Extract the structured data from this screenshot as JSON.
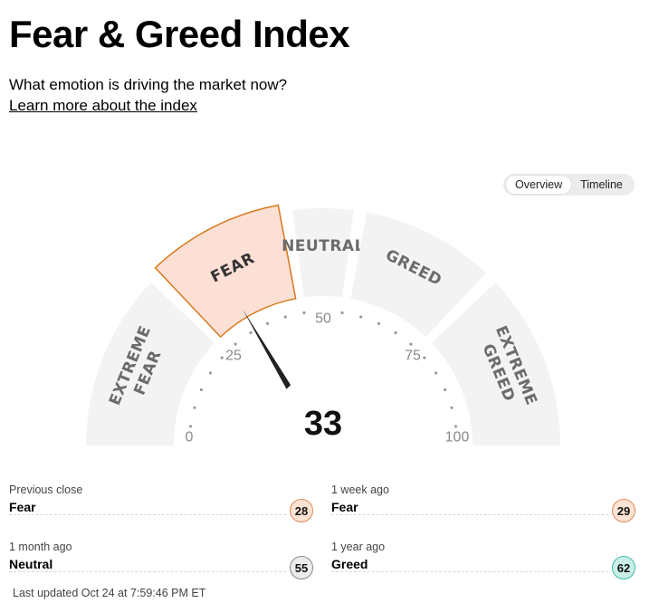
{
  "header": {
    "title": "Fear & Greed Index",
    "subtitle": "What emotion is driving the market now?",
    "learn_link": "Learn more about the index"
  },
  "view_toggle": {
    "options": [
      "Overview",
      "Timeline"
    ],
    "selected": "Overview"
  },
  "gauge": {
    "score": "33",
    "score_value": 33,
    "range": [
      0,
      100
    ],
    "active_segment": "FEAR",
    "segments": [
      {
        "label_lines": [
          "EXTREME",
          "FEAR"
        ],
        "range": [
          0,
          25
        ]
      },
      {
        "label_lines": [
          "FEAR"
        ],
        "range": [
          25,
          45
        ]
      },
      {
        "label_lines": [
          "NEUTRAL"
        ],
        "range": [
          45,
          55
        ]
      },
      {
        "label_lines": [
          "GREED"
        ],
        "range": [
          55,
          75
        ]
      },
      {
        "label_lines": [
          "EXTREME",
          "GREED"
        ],
        "range": [
          75,
          100
        ]
      }
    ],
    "tick_labels": [
      "0",
      "25",
      "50",
      "75",
      "100"
    ],
    "colors": {
      "segment": "#f3f3f3",
      "active_fill": "#fde0d5",
      "active_stroke": "#d9781a",
      "segment_text": "#6b6b6b",
      "active_text": "#333333",
      "needle": "#222222"
    }
  },
  "stats": [
    {
      "label": "Previous close",
      "value": "Fear",
      "score": "28",
      "fill": "#fde3d4",
      "border": "#e08a5a"
    },
    {
      "label": "1 week ago",
      "value": "Fear",
      "score": "29",
      "fill": "#fde3d4",
      "border": "#e08a5a"
    },
    {
      "label": "1 month ago",
      "value": "Neutral",
      "score": "55",
      "fill": "#ececec",
      "border": "#888888"
    },
    {
      "label": "1 year ago",
      "value": "Greed",
      "score": "62",
      "fill": "#c9efe6",
      "border": "#3fbf9f"
    }
  ],
  "footer": {
    "last_updated": "Last updated Oct 24 at 7:59:46 PM ET"
  }
}
